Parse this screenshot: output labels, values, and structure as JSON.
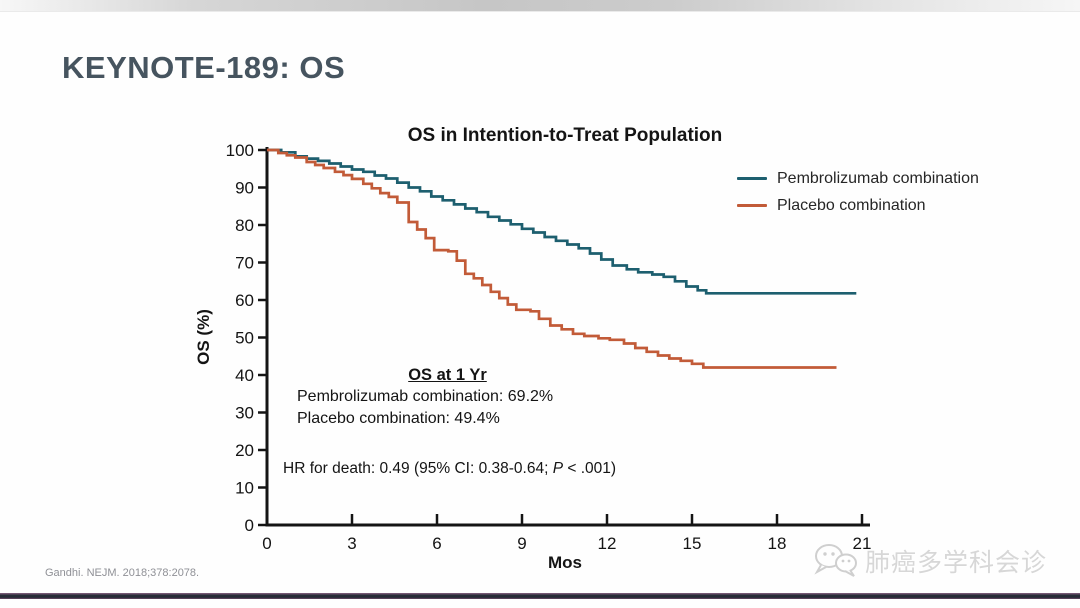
{
  "slide": {
    "title": "KEYNOTE-189: OS"
  },
  "footer": {
    "citation": "Gandhi. NEJM. 2018;378:2078.",
    "watermark_text": "肺癌多学科会诊"
  },
  "colors": {
    "pembrolizumab": "#1d5f6f",
    "placebo": "#c25b38",
    "slide_title": "#46545f",
    "axis": "#141414"
  },
  "chart_data": {
    "type": "line",
    "subtype": "kaplan-meier-step",
    "title": "OS in Intention-to-Treat Population",
    "xlabel": "Mos",
    "ylabel": "OS (%)",
    "xlim": [
      0,
      21
    ],
    "ylim": [
      0,
      100
    ],
    "xticks": [
      0,
      3,
      6,
      9,
      12,
      15,
      18,
      21
    ],
    "yticks": [
      0,
      10,
      20,
      30,
      40,
      50,
      60,
      70,
      80,
      90,
      100
    ],
    "grid": false,
    "legend_position": "top-right",
    "series": [
      {
        "name": "Pembrolizumab combination",
        "color": "#1d5f6f",
        "points": [
          [
            0,
            100
          ],
          [
            0.5,
            99.4
          ],
          [
            1,
            98.3
          ],
          [
            1.4,
            97.7
          ],
          [
            1.8,
            97.1
          ],
          [
            2.2,
            96.4
          ],
          [
            2.6,
            95.6
          ],
          [
            3,
            94.8
          ],
          [
            3.4,
            94.2
          ],
          [
            3.8,
            93.2
          ],
          [
            4.2,
            92.4
          ],
          [
            4.6,
            91.3
          ],
          [
            5,
            90
          ],
          [
            5.4,
            89
          ],
          [
            5.8,
            87.6
          ],
          [
            6.2,
            86.6
          ],
          [
            6.6,
            85.5
          ],
          [
            7,
            84.4
          ],
          [
            7.4,
            83.4
          ],
          [
            7.8,
            82.2
          ],
          [
            8.2,
            81.2
          ],
          [
            8.6,
            80.2
          ],
          [
            9,
            79
          ],
          [
            9.4,
            78
          ],
          [
            9.8,
            76.8
          ],
          [
            10.2,
            75.8
          ],
          [
            10.6,
            74.8
          ],
          [
            11,
            73.8
          ],
          [
            11.4,
            72.4
          ],
          [
            11.8,
            70.8
          ],
          [
            12.2,
            69.2
          ],
          [
            12.7,
            68.2
          ],
          [
            13.1,
            67.4
          ],
          [
            13.6,
            66.8
          ],
          [
            14,
            66.2
          ],
          [
            14.4,
            65
          ],
          [
            14.8,
            63.6
          ],
          [
            15.2,
            62.6
          ],
          [
            15.5,
            61.8
          ],
          [
            20.8,
            61.8
          ]
        ]
      },
      {
        "name": "Placebo combination",
        "color": "#c25b38",
        "points": [
          [
            0,
            100
          ],
          [
            0.4,
            99.2
          ],
          [
            0.7,
            98.6
          ],
          [
            1,
            98
          ],
          [
            1.4,
            96.8
          ],
          [
            1.7,
            96
          ],
          [
            2,
            95.2
          ],
          [
            2.4,
            94.2
          ],
          [
            2.7,
            93.3
          ],
          [
            3,
            92.3
          ],
          [
            3.4,
            91
          ],
          [
            3.7,
            89.8
          ],
          [
            4,
            88.5
          ],
          [
            4.3,
            87.5
          ],
          [
            4.6,
            86
          ],
          [
            5,
            80.8
          ],
          [
            5.3,
            78.8
          ],
          [
            5.6,
            76.5
          ],
          [
            5.9,
            73.3
          ],
          [
            6.4,
            73
          ],
          [
            6.7,
            70.5
          ],
          [
            7,
            67
          ],
          [
            7.3,
            65.8
          ],
          [
            7.6,
            64
          ],
          [
            7.9,
            62.2
          ],
          [
            8.2,
            60.5
          ],
          [
            8.5,
            58.8
          ],
          [
            8.8,
            57.4
          ],
          [
            9.3,
            57
          ],
          [
            9.6,
            55
          ],
          [
            10,
            53.2
          ],
          [
            10.4,
            52.2
          ],
          [
            10.8,
            51
          ],
          [
            11.2,
            50.4
          ],
          [
            11.7,
            49.8
          ],
          [
            12.1,
            49.4
          ],
          [
            12.6,
            48.4
          ],
          [
            13,
            47.2
          ],
          [
            13.4,
            46.2
          ],
          [
            13.8,
            45.2
          ],
          [
            14.2,
            44.4
          ],
          [
            14.6,
            43.8
          ],
          [
            15,
            43
          ],
          [
            15.4,
            42
          ],
          [
            20.1,
            42
          ]
        ]
      }
    ],
    "annotations": {
      "heading": "OS at 1 Yr",
      "lines": [
        "Pembrolizumab combination: 69.2%",
        "Placebo combination: 49.4%"
      ],
      "hr": {
        "prefix": "HR for death: 0.49 (95% CI: 0.38-0.64; ",
        "italic": "P",
        "suffix": " < .001)"
      }
    }
  }
}
